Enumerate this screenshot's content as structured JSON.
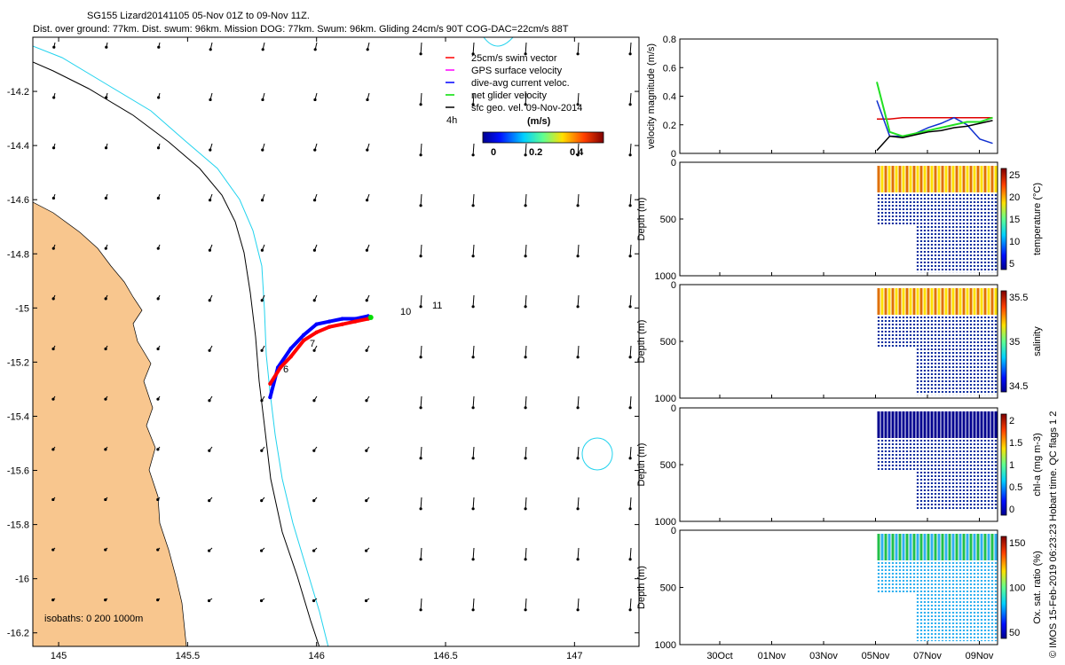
{
  "header": {
    "line1": "SG155 Lizard20141105 05-Nov 01Z to 09-Nov 11Z.",
    "line2": "Dist. over ground: 77km. Dist. swum: 96km. Mission DOG: 77km. Swum: 96km. Gliding 24cm/s 90T COG-DAC=22cm/s 88T"
  },
  "colors": {
    "land": "#f8c68e",
    "coast_contour_cyan": "#22d3ee",
    "swim": "#ff0000",
    "gps": "#ff00ff",
    "dac": "#0000ff",
    "net": "#00dd00",
    "sfc": "#000000",
    "velocity_red": "#e00000",
    "velocity_blue": "#1030d0",
    "velocity_green": "#22e022"
  },
  "map": {
    "x_ticks": [
      "145",
      "145.5",
      "146",
      "146.5",
      "147"
    ],
    "y_ticks": [
      "-14.2",
      "-14.4",
      "-14.6",
      "-14.8",
      "-15",
      "-15.2",
      "-15.4",
      "-15.6",
      "-15.8",
      "-16",
      "-16.2"
    ],
    "isobaths_label": "isobaths: 0   200  1000m",
    "legend": {
      "entries": [
        {
          "label": "25cm/s swim vector",
          "color": "#ff0000"
        },
        {
          "label": "GPS surface velocity",
          "color": "#ff00ff"
        },
        {
          "label": "dive-avg current veloc.",
          "color": "#0000ff"
        },
        {
          "label": "net glider velocity",
          "color": "#00dd00"
        },
        {
          "label": "sfc geo. vel. 09-Nov-2014",
          "color": "#000000"
        }
      ],
      "interval_label": "4h",
      "units_label": "(m/s)",
      "colorbar_ticks": [
        "0",
        "0.2",
        "0.4"
      ]
    },
    "track_labels": [
      "6",
      "7",
      "10",
      "11"
    ]
  },
  "panels": {
    "velocity": {
      "ylabel": "velocity magnitude (m/s)",
      "y_ticks": [
        "0",
        "0.2",
        "0.4",
        "0.6",
        "0.8"
      ]
    },
    "temperature": {
      "ylabel": "Depth (m)",
      "y_ticks": [
        "0",
        "500",
        "1000"
      ],
      "cbar_label": "temperature (°C)",
      "cbar_ticks": [
        "25",
        "20",
        "15",
        "10",
        "5"
      ]
    },
    "salinity": {
      "ylabel": "Depth (m)",
      "y_ticks": [
        "0",
        "500",
        "1000"
      ],
      "cbar_label": "salinity",
      "cbar_ticks": [
        "35.5",
        "35",
        "34.5"
      ]
    },
    "chla": {
      "ylabel": "Depth (m)",
      "y_ticks": [
        "0",
        "500",
        "1000"
      ],
      "cbar_label": "chl-a (mg m-3)",
      "cbar_ticks": [
        "2",
        "1.5",
        "1",
        "0.5",
        "0"
      ]
    },
    "oxygen": {
      "ylabel": "Depth (m)",
      "y_ticks": [
        "0",
        "500",
        "1000"
      ],
      "cbar_label": "Ox. sat. ratio (%)",
      "cbar_ticks": [
        "150",
        "100",
        "50"
      ]
    },
    "x_ticks": [
      "30Oct",
      "01Nov",
      "03Nov",
      "05Nov",
      "07Nov",
      "09Nov"
    ]
  },
  "footer_vertical": "© IMOS 15-Feb-2019 06:23:23 Hobart time. QC flags 1  2",
  "chart_data": [
    {
      "type": "scatter",
      "title": "SG155 Lizard20141105 05-Nov 01Z to 09-Nov 11Z.",
      "xlim": [
        144.9,
        147.25
      ],
      "ylim": [
        -16.25,
        -14.0
      ],
      "series": [
        {
          "name": "dive-avg current veloc.",
          "x": [
            145.82,
            145.85,
            145.9,
            145.95,
            146.0,
            146.05,
            146.1,
            146.15,
            146.2
          ],
          "y": [
            -15.33,
            -15.22,
            -15.15,
            -15.1,
            -15.06,
            -15.05,
            -15.04,
            -15.04,
            -15.03
          ]
        },
        {
          "name": "25cm/s swim vector",
          "x": [
            145.82,
            145.86,
            145.9,
            145.95,
            146.0,
            146.05,
            146.1,
            146.15,
            146.2
          ],
          "y": [
            -15.28,
            -15.22,
            -15.18,
            -15.12,
            -15.09,
            -15.07,
            -15.06,
            -15.05,
            -15.04
          ]
        }
      ]
    },
    {
      "type": "line",
      "ylabel": "velocity magnitude (m/s)",
      "ylim": [
        0,
        0.8
      ],
      "x": [
        "05Nov",
        "05.5Nov",
        "06Nov",
        "06.5Nov",
        "07Nov",
        "07.5Nov",
        "08Nov",
        "08.5Nov",
        "09Nov",
        "09.5Nov"
      ],
      "series": [
        {
          "name": "25cm/s swim vector",
          "values": [
            0.24,
            0.24,
            0.25,
            0.25,
            0.25,
            0.25,
            0.25,
            0.25,
            0.25,
            0.25
          ]
        },
        {
          "name": "dive-avg current veloc.",
          "values": [
            0.37,
            0.12,
            0.12,
            0.14,
            0.18,
            0.21,
            0.25,
            0.2,
            0.1,
            0.07
          ]
        },
        {
          "name": "net glider velocity",
          "values": [
            0.5,
            0.15,
            0.12,
            0.14,
            0.16,
            0.18,
            0.2,
            0.22,
            0.22,
            0.25
          ]
        },
        {
          "name": "sfc geo. vel. 09-Nov-2014",
          "values": [
            0.02,
            0.12,
            0.11,
            0.13,
            0.15,
            0.16,
            0.18,
            0.19,
            0.21,
            0.23
          ]
        }
      ]
    }
  ]
}
